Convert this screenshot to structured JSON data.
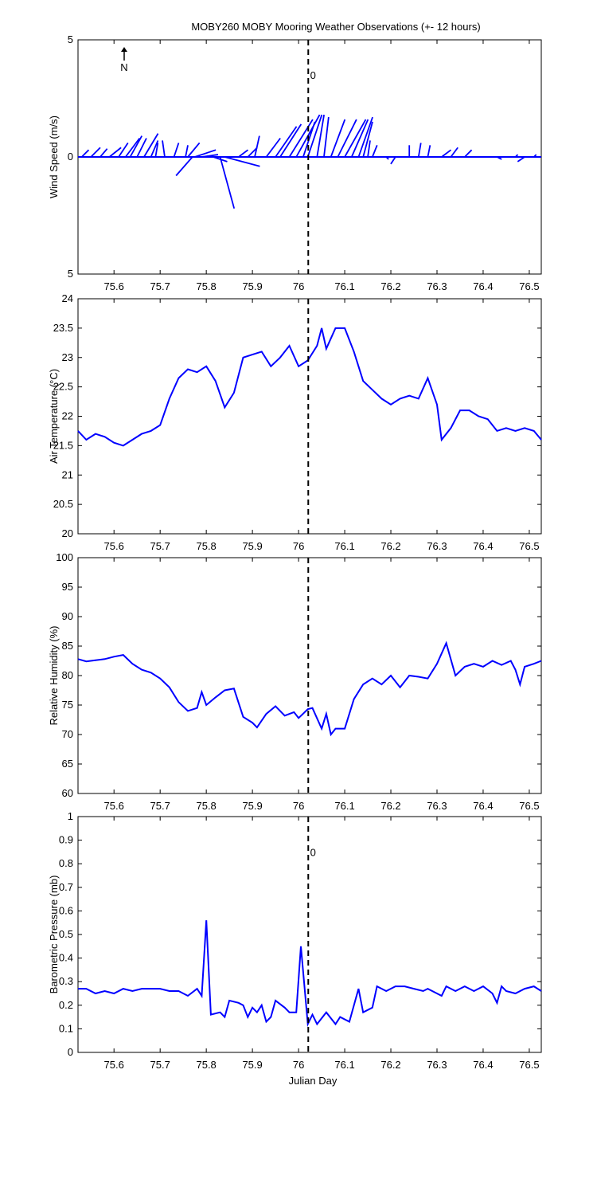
{
  "chart_data": [
    {
      "type": "quiver",
      "title": "MOBY260 MOBY Mooring Weather Observations (+- 12 hours)",
      "ylabel": "Wind Speed (m/s)",
      "north_label": "N",
      "color": "#0000ff",
      "xlim": [
        75.522,
        76.526
      ],
      "xticks": [
        75.6,
        75.7,
        75.8,
        75.9,
        76,
        76.1,
        76.2,
        76.3,
        76.4,
        76.5
      ],
      "ylim": [
        -5,
        5
      ],
      "yticks": [
        {
          "value": -5,
          "label": "5"
        },
        0,
        5
      ],
      "vline": 76.021,
      "annotation": {
        "text": "0",
        "x": 76.025,
        "y": 3.5,
        "color": "#cc0000"
      },
      "x": [
        75.53,
        75.55,
        75.57,
        75.59,
        75.61,
        75.625,
        75.635,
        75.65,
        75.665,
        75.68,
        75.69,
        75.71,
        75.73,
        75.755,
        75.76,
        75.775,
        75.79,
        75.77,
        75.815,
        75.83,
        75.84,
        75.87,
        75.89,
        75.905,
        75.93,
        75.95,
        75.96,
        75.98,
        75.995,
        76.01,
        76.02,
        76.04,
        76.055,
        76.07,
        76.085,
        76.1,
        76.115,
        76.13,
        76.14,
        76.15,
        76.16,
        76.19,
        76.21,
        76.24,
        76.26,
        76.28,
        76.31,
        76.33,
        76.36,
        76.43,
        76.47,
        76.49,
        76.51
      ],
      "u": [
        0.3,
        0.4,
        0.3,
        0.5,
        0.4,
        0.6,
        0.5,
        0.4,
        0.6,
        0.3,
        0.1,
        -0.1,
        0.2,
        0.1,
        0.5,
        0.9,
        0.7,
        -0.7,
        0.6,
        0.6,
        1.5,
        0.4,
        0.4,
        0.2,
        0.6,
        0.9,
        0.9,
        1.0,
        1.0,
        0.5,
        0.6,
        0.3,
        0.2,
        0.6,
        0.8,
        0.9,
        0.7,
        0.6,
        0.4,
        0.1,
        0.2,
        0.1,
        -0.2,
        0,
        0.1,
        0.1,
        0.4,
        0.3,
        0.3,
        0.2,
        0.1,
        -0.3,
        0.1
      ],
      "v": [
        0.3,
        0.4,
        0.35,
        0.4,
        0.6,
        0.8,
        0.9,
        0.8,
        1.0,
        0.7,
        0.6,
        0.7,
        0.6,
        0.5,
        0.6,
        0.3,
        0.1,
        -0.8,
        -0.2,
        -2.2,
        -0.4,
        0.3,
        0.4,
        0.9,
        0.8,
        1.3,
        1.4,
        1.6,
        1.8,
        1.5,
        1.8,
        1.8,
        1.7,
        1.6,
        1.6,
        1.6,
        1.6,
        1.7,
        1.5,
        0.7,
        0.5,
        -0.1,
        -0.3,
        0.5,
        0.6,
        0.5,
        0.3,
        0.4,
        0.3,
        -0.1,
        0.1,
        -0.2,
        0.1
      ]
    },
    {
      "type": "line",
      "ylabel": "Air Temperature (°C)",
      "color": "#0000ff",
      "xlim": [
        75.522,
        76.526
      ],
      "xticks": [
        75.6,
        75.7,
        75.8,
        75.9,
        76,
        76.1,
        76.2,
        76.3,
        76.4,
        76.5
      ],
      "ylim": [
        20,
        24
      ],
      "yticks": [
        20,
        20.5,
        21,
        21.5,
        22,
        22.5,
        23,
        23.5,
        24
      ],
      "vline": 76.021,
      "x": [
        75.522,
        75.54,
        75.56,
        75.58,
        75.6,
        75.62,
        75.64,
        75.66,
        75.68,
        75.7,
        75.72,
        75.74,
        75.76,
        75.78,
        75.8,
        75.82,
        75.84,
        75.86,
        75.88,
        75.9,
        75.92,
        75.94,
        75.96,
        75.98,
        76,
        76.02,
        76.04,
        76.05,
        76.06,
        76.08,
        76.1,
        76.12,
        76.14,
        76.16,
        76.18,
        76.2,
        76.22,
        76.24,
        76.26,
        76.28,
        76.3,
        76.31,
        76.33,
        76.35,
        76.37,
        76.39,
        76.41,
        76.43,
        76.45,
        76.47,
        76.49,
        76.51,
        76.526
      ],
      "values": [
        21.75,
        21.6,
        21.7,
        21.65,
        21.55,
        21.5,
        21.6,
        21.7,
        21.75,
        21.85,
        22.3,
        22.65,
        22.8,
        22.75,
        22.85,
        22.6,
        22.15,
        22.4,
        23.0,
        23.05,
        23.1,
        22.85,
        23.0,
        23.2,
        22.85,
        22.95,
        23.2,
        23.5,
        23.15,
        23.5,
        23.5,
        23.1,
        22.6,
        22.45,
        22.3,
        22.2,
        22.3,
        22.35,
        22.3,
        22.65,
        22.2,
        21.6,
        21.8,
        22.1,
        22.1,
        22.0,
        21.95,
        21.75,
        21.8,
        21.75,
        21.8,
        21.75,
        21.6
      ]
    },
    {
      "type": "line",
      "ylabel": "Relative Humidity (%)",
      "color": "#0000ff",
      "xlim": [
        75.522,
        76.526
      ],
      "xticks": [
        75.6,
        75.7,
        75.8,
        75.9,
        76,
        76.1,
        76.2,
        76.3,
        76.4,
        76.5
      ],
      "ylim": [
        60,
        100
      ],
      "yticks": [
        60,
        65,
        70,
        75,
        80,
        85,
        90,
        95,
        100
      ],
      "vline": 76.021,
      "x": [
        75.522,
        75.54,
        75.56,
        75.58,
        75.6,
        75.62,
        75.64,
        75.66,
        75.68,
        75.7,
        75.72,
        75.74,
        75.76,
        75.78,
        75.79,
        75.8,
        75.82,
        75.84,
        75.86,
        75.88,
        75.9,
        75.91,
        75.93,
        75.95,
        75.97,
        75.99,
        76,
        76.02,
        76.03,
        76.05,
        76.06,
        76.07,
        76.08,
        76.1,
        76.12,
        76.14,
        76.16,
        76.18,
        76.2,
        76.22,
        76.24,
        76.26,
        76.28,
        76.3,
        76.32,
        76.34,
        76.36,
        76.38,
        76.4,
        76.42,
        76.44,
        76.46,
        76.47,
        76.48,
        76.49,
        76.51,
        76.526
      ],
      "values": [
        82.8,
        82.4,
        82.6,
        82.8,
        83.2,
        83.5,
        82,
        81,
        80.5,
        79.5,
        78,
        75.5,
        74,
        74.5,
        77.2,
        75,
        76.3,
        77.5,
        77.8,
        73,
        72,
        71.2,
        73.5,
        74.8,
        73.2,
        73.8,
        72.8,
        74.3,
        74.5,
        71,
        73.5,
        70,
        71,
        71,
        76,
        78.5,
        79.5,
        78.5,
        80,
        78,
        80,
        79.8,
        79.5,
        82,
        85.5,
        80,
        81.5,
        82,
        81.5,
        82.5,
        81.8,
        82.5,
        81,
        78.5,
        81.5,
        82,
        82.5
      ]
    },
    {
      "type": "line",
      "ylabel": "Barometric Pressure (mb)",
      "xlabel": "Julian Day",
      "color": "#0000ff",
      "xlim": [
        75.522,
        76.526
      ],
      "xticks": [
        75.6,
        75.7,
        75.8,
        75.9,
        76,
        76.1,
        76.2,
        76.3,
        76.4,
        76.5
      ],
      "ylim": [
        0,
        1
      ],
      "yticks": [
        0,
        0.1,
        0.2,
        0.3,
        0.4,
        0.5,
        0.6,
        0.7,
        0.8,
        0.9,
        1
      ],
      "vline": 76.021,
      "annotation": {
        "text": "0",
        "x": 76.025,
        "y": 0.85,
        "color": "#cc0000"
      },
      "x": [
        75.522,
        75.54,
        75.56,
        75.58,
        75.6,
        75.62,
        75.64,
        75.66,
        75.68,
        75.7,
        75.72,
        75.74,
        75.76,
        75.78,
        75.79,
        75.8,
        75.81,
        75.83,
        75.84,
        75.85,
        75.87,
        75.88,
        75.89,
        75.9,
        75.91,
        75.92,
        75.93,
        75.94,
        75.95,
        75.97,
        75.98,
        75.995,
        76.005,
        76.02,
        76.03,
        76.04,
        76.06,
        76.08,
        76.09,
        76.11,
        76.13,
        76.14,
        76.16,
        76.17,
        76.19,
        76.21,
        76.23,
        76.25,
        76.27,
        76.28,
        76.31,
        76.32,
        76.34,
        76.36,
        76.38,
        76.4,
        76.42,
        76.43,
        76.44,
        76.45,
        76.47,
        76.49,
        76.51,
        76.526
      ],
      "values": [
        0.27,
        0.27,
        0.25,
        0.26,
        0.25,
        0.27,
        0.26,
        0.27,
        0.27,
        0.27,
        0.26,
        0.26,
        0.24,
        0.27,
        0.24,
        0.56,
        0.16,
        0.17,
        0.15,
        0.22,
        0.21,
        0.2,
        0.15,
        0.19,
        0.17,
        0.2,
        0.13,
        0.15,
        0.22,
        0.19,
        0.17,
        0.17,
        0.45,
        0.12,
        0.16,
        0.12,
        0.17,
        0.12,
        0.15,
        0.13,
        0.27,
        0.17,
        0.19,
        0.28,
        0.26,
        0.28,
        0.28,
        0.27,
        0.26,
        0.27,
        0.24,
        0.28,
        0.26,
        0.28,
        0.26,
        0.28,
        0.25,
        0.21,
        0.28,
        0.26,
        0.25,
        0.27,
        0.28,
        0.26
      ]
    }
  ]
}
